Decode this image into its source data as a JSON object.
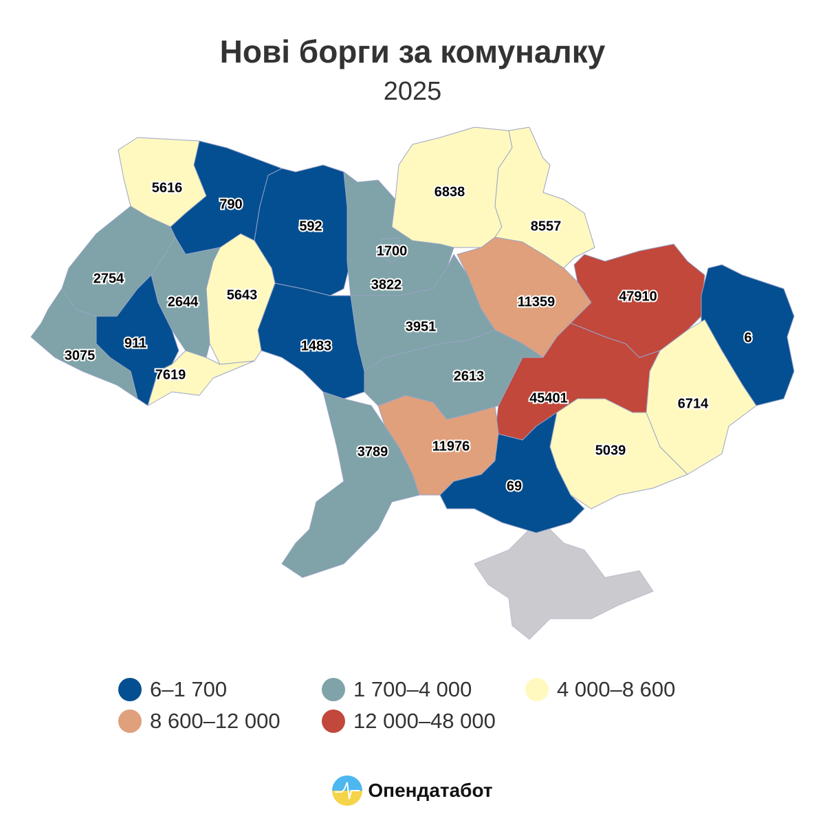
{
  "title": "Нові борги за комуналку",
  "subtitle": "2025",
  "legend": [
    {
      "label": "6–1 700",
      "color": "#044f91"
    },
    {
      "label": "1 700–4 000",
      "color": "#7fa3a8"
    },
    {
      "label": "4 000–8 600",
      "color": "#fff9bf"
    },
    {
      "label": "8 600–12 000",
      "color": "#e0a07b"
    },
    {
      "label": "12 000–48 000",
      "color": "#c1483b"
    }
  ],
  "no_data_color": "#cbcbcf",
  "regions": [
    {
      "value": "5616",
      "bin": 2
    },
    {
      "value": "790",
      "bin": 0
    },
    {
      "value": "592",
      "bin": 0
    },
    {
      "value": "3822",
      "bin": 1
    },
    {
      "value": "1700",
      "bin": 1
    },
    {
      "value": "6838",
      "bin": 2
    },
    {
      "value": "8557",
      "bin": 2
    },
    {
      "value": "11359",
      "bin": 3
    },
    {
      "value": "47910",
      "bin": 4
    },
    {
      "value": "6",
      "bin": 0
    },
    {
      "value": "6714",
      "bin": 2
    },
    {
      "value": "45401",
      "bin": 4
    },
    {
      "value": "5039",
      "bin": 2
    },
    {
      "value": "69",
      "bin": 0
    },
    {
      "value": "11976",
      "bin": 3
    },
    {
      "value": "3789",
      "bin": 1
    },
    {
      "value": "2613",
      "bin": 1
    },
    {
      "value": "3951",
      "bin": 1
    },
    {
      "value": "1483",
      "bin": 0
    },
    {
      "value": "5643",
      "bin": 2
    },
    {
      "value": "2644",
      "bin": 1
    },
    {
      "value": "2754",
      "bin": 1
    },
    {
      "value": "911",
      "bin": 0
    },
    {
      "value": "7619",
      "bin": 2
    },
    {
      "value": "3075",
      "bin": 1
    }
  ],
  "brand": {
    "name": "Опендатабот",
    "icon": "opendatabot-logo-icon"
  }
}
